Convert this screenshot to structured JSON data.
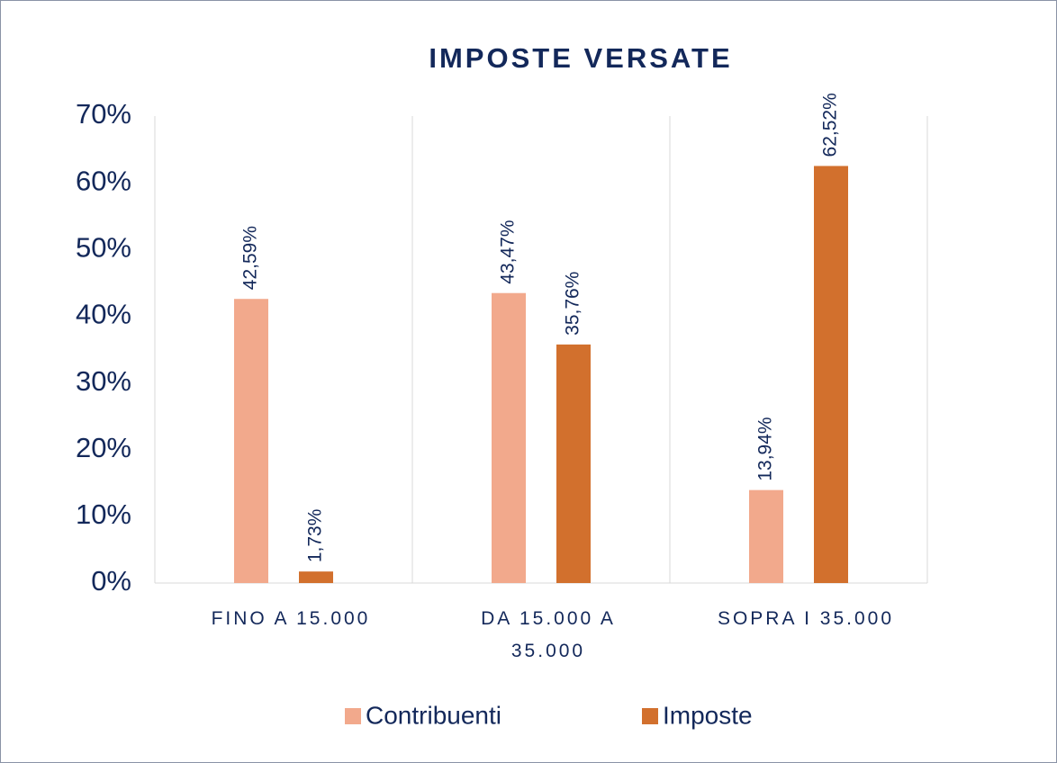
{
  "chart_data": {
    "type": "bar",
    "title": "IMPOSTE VERSATE",
    "categories": [
      "FINO A 15.000",
      "DA 15.000 A 35.000",
      "SOPRA I 35.000"
    ],
    "series": [
      {
        "name": "Contribuenti",
        "color": "#f2a98c",
        "values": [
          42.59,
          43.47,
          13.94
        ],
        "value_labels": [
          "42,59%",
          "43,47%",
          "13,94%"
        ]
      },
      {
        "name": "Imposte",
        "color": "#d2702d",
        "values": [
          1.73,
          35.76,
          62.52
        ],
        "value_labels": [
          "1,73%",
          "35,76%",
          "62,52%"
        ]
      }
    ],
    "ylim": [
      0,
      70
    ],
    "yticks": [
      {
        "value": 0,
        "label": "0%"
      },
      {
        "value": 10,
        "label": "10%"
      },
      {
        "value": 20,
        "label": "20%"
      },
      {
        "value": 30,
        "label": "30%"
      },
      {
        "value": 40,
        "label": "40%"
      },
      {
        "value": 50,
        "label": "50%"
      },
      {
        "value": 60,
        "label": "60%"
      },
      {
        "value": 70,
        "label": "70%"
      }
    ],
    "legend": "bottom"
  }
}
